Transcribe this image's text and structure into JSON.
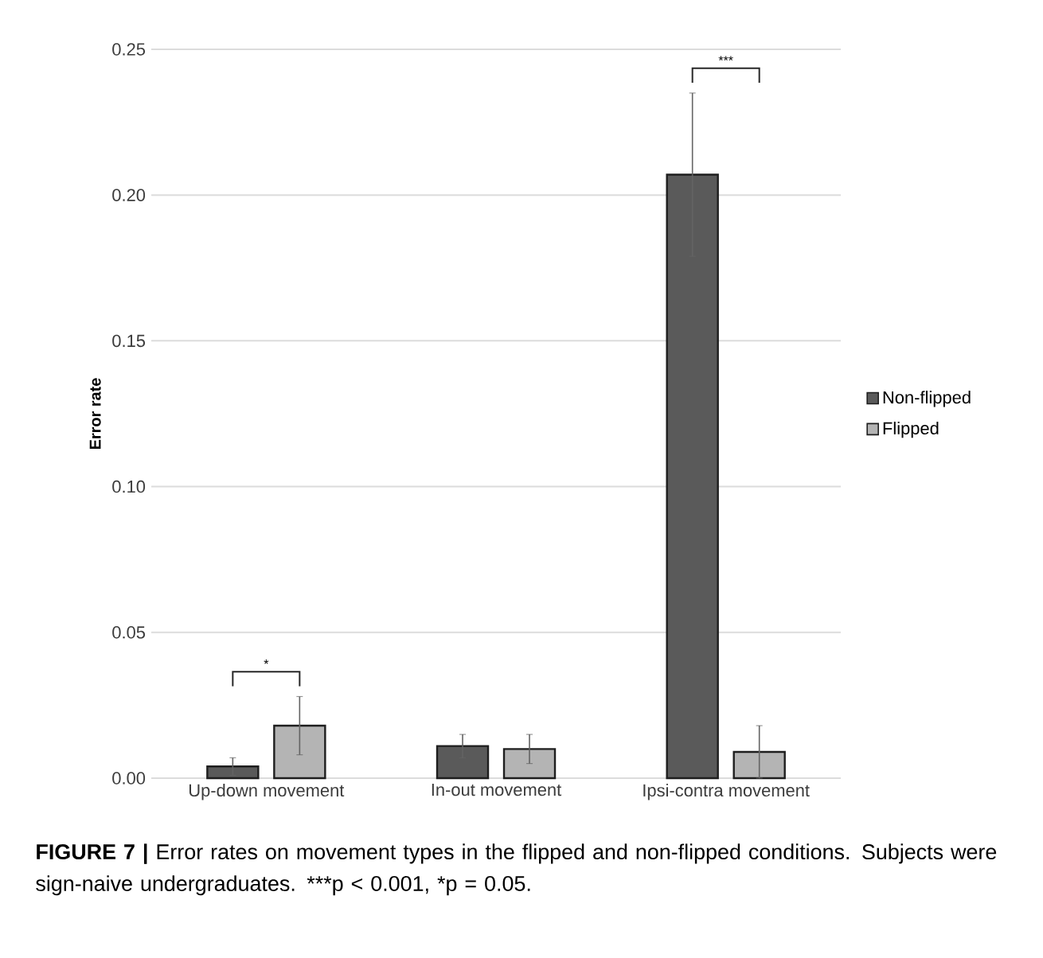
{
  "chart_data": {
    "type": "bar",
    "ylabel": "Error rate",
    "categories": [
      "Up-down movement",
      "In-out movement",
      "Ipsi-contra movement"
    ],
    "series": [
      {
        "name": "Non-flipped",
        "color": "#5a5a5a",
        "values": [
          0.004,
          0.011,
          0.207
        ],
        "errors": [
          0.003,
          0.004,
          0.028
        ]
      },
      {
        "name": "Flipped",
        "color": "#b4b4b4",
        "values": [
          0.018,
          0.01,
          0.009
        ],
        "errors": [
          0.01,
          0.005,
          0.009
        ]
      }
    ],
    "ylim": [
      0,
      0.25
    ],
    "yticks": [
      {
        "value": 0,
        "label": "0.00"
      },
      {
        "value": 0.05,
        "label": "0.05"
      },
      {
        "value": 0.1,
        "label": "0.10"
      },
      {
        "value": 0.15,
        "label": "0.15"
      },
      {
        "value": 0.2,
        "label": "0.20"
      },
      {
        "value": 0.25,
        "label": "0.25"
      }
    ],
    "grid": "y",
    "legend": "right",
    "annotations": [
      "*",
      "***",
      "FIGURE 7 |",
      "Error rates on movement types in the flipped and non-flipped conditions. Subjects were sign-naive undergraduates. ***p < 0.001, *p = 0.05."
    ]
  }
}
